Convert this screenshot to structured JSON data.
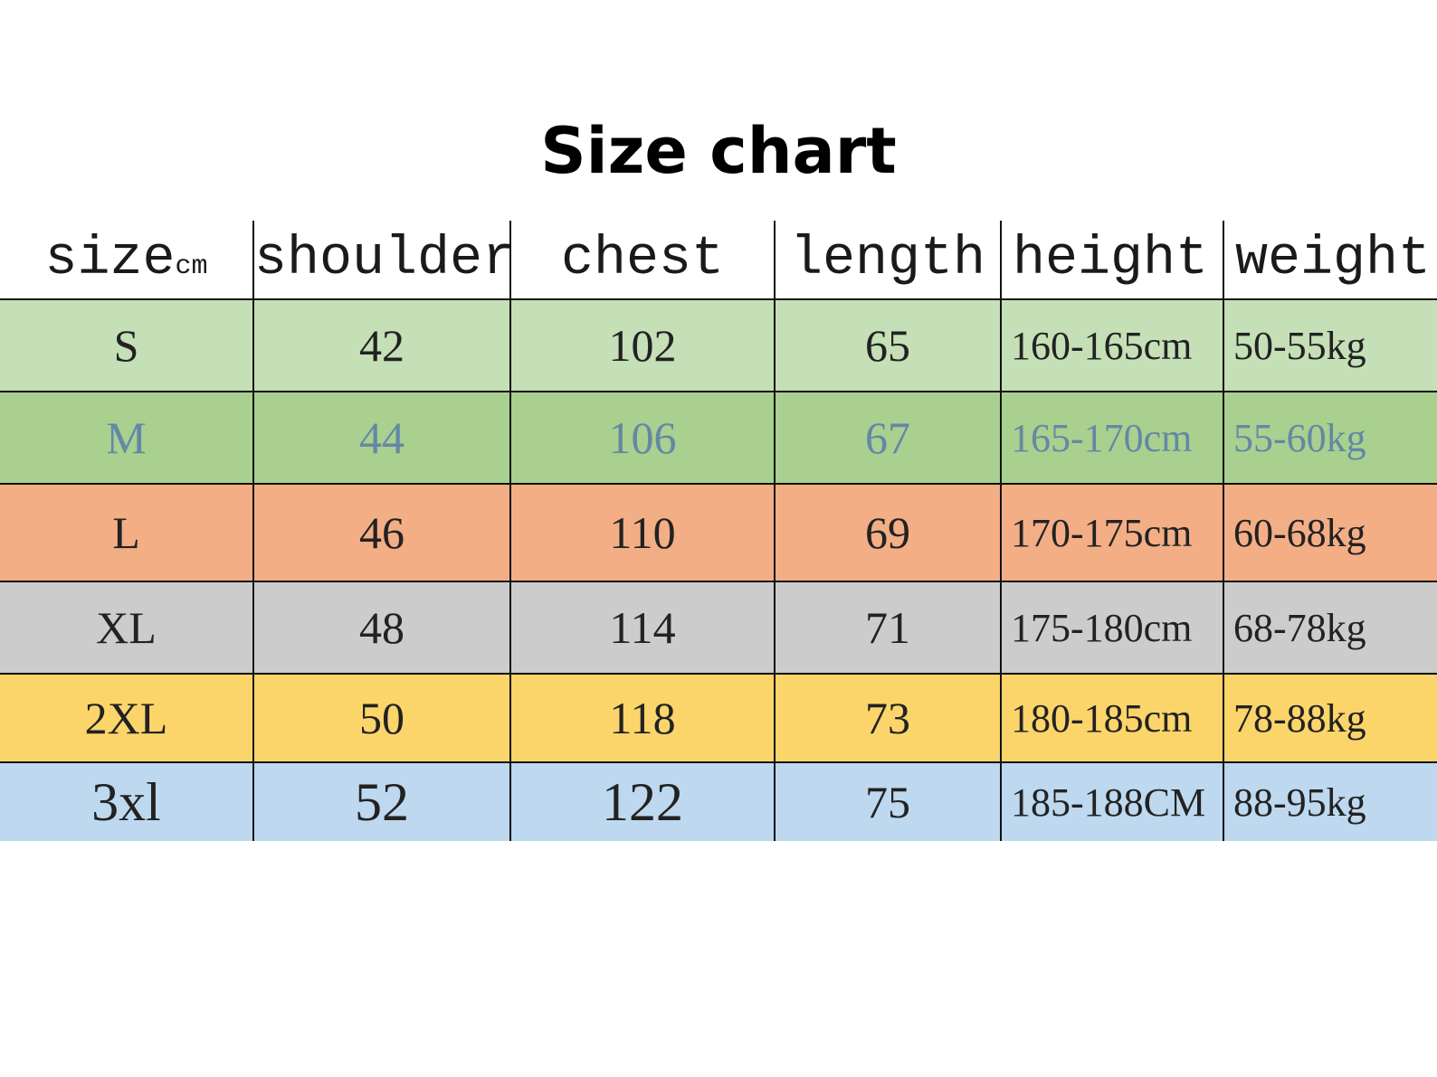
{
  "title": "Size chart",
  "table": {
    "headers": {
      "size": "size",
      "size_unit": "cm",
      "shoulder": "shoulder",
      "chest": "chest",
      "length": "length",
      "height": "height",
      "weight": "weight"
    },
    "rows": [
      {
        "size": "S",
        "shoulder": "42",
        "chest": "102",
        "length": "65",
        "height": "160-165cm",
        "weight": "50-55kg",
        "color": "#c5dfb6"
      },
      {
        "size": "M",
        "shoulder": "44",
        "chest": "106",
        "length": "67",
        "height": "165-170cm",
        "weight": "55-60kg",
        "color": "#a9d08e"
      },
      {
        "size": "L",
        "shoulder": "46",
        "chest": "110",
        "length": "69",
        "height": "170-175cm",
        "weight": "60-68kg",
        "color": "#f3ae86"
      },
      {
        "size": "XL",
        "shoulder": "48",
        "chest": "114",
        "length": "71",
        "height": "175-180cm",
        "weight": "68-78kg",
        "color": "#cccccc"
      },
      {
        "size": "2XL",
        "shoulder": "50",
        "chest": "118",
        "length": "73",
        "height": "180-185cm",
        "weight": "78-88kg",
        "color": "#fcd56a"
      },
      {
        "size": "3xl",
        "shoulder": "52",
        "chest": "122",
        "length": "75",
        "height": "185-188CM",
        "weight": "88-95kg",
        "color": "#bdd8ef"
      }
    ]
  }
}
